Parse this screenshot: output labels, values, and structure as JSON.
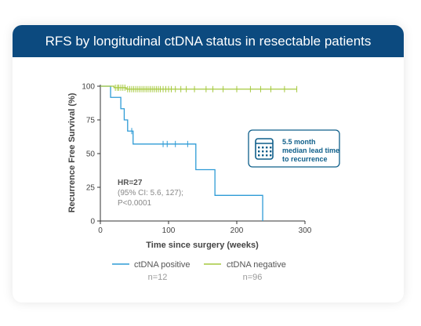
{
  "header": {
    "title": "RFS by longitudinal ctDNA status in resectable patients"
  },
  "callout": {
    "icon": "calendar-icon",
    "lines": [
      "5.5 month",
      "median lead time",
      "to recurrence"
    ]
  },
  "hr_annotation": {
    "line1": "HR=27",
    "line2": "(95% CI: 5.6, 127);",
    "line3": "P<0.0001"
  },
  "colors": {
    "header_bg": "#0c4a7f",
    "positive": "#2e9bd6",
    "negative": "#a6c93e",
    "callout_accent": "#0f5f8a"
  },
  "chart_data": {
    "type": "line",
    "subtype": "kaplan-meier",
    "xlabel": "Time since surgery (weeks)",
    "ylabel": "Recurrence Free Survival (%)",
    "xlim": [
      0,
      300
    ],
    "ylim": [
      0,
      100
    ],
    "xticks": [
      0,
      100,
      200,
      300
    ],
    "yticks": [
      0,
      25,
      50,
      75,
      100
    ],
    "legend": {
      "placement": "bottom",
      "items": [
        {
          "label": "ctDNA positive",
          "n": "n=12",
          "color": "#2e9bd6"
        },
        {
          "label": "ctDNA negative",
          "n": "n=96",
          "color": "#a6c93e"
        }
      ]
    },
    "series": [
      {
        "name": "ctDNA positive",
        "color": "#2e9bd6",
        "steps": [
          [
            0,
            100
          ],
          [
            15,
            100
          ],
          [
            15,
            91.7
          ],
          [
            30,
            91.7
          ],
          [
            30,
            83.3
          ],
          [
            35,
            83.3
          ],
          [
            35,
            75
          ],
          [
            40,
            75
          ],
          [
            40,
            66.7
          ],
          [
            48,
            66.7
          ],
          [
            48,
            57.1
          ],
          [
            140,
            57.1
          ],
          [
            140,
            38.1
          ],
          [
            168,
            38.1
          ],
          [
            168,
            19
          ],
          [
            238,
            19
          ],
          [
            238,
            0
          ]
        ],
        "censor_x": [
          46,
          92,
          98,
          110,
          128
        ],
        "censor_y": [
          66.7,
          57.1,
          57.1,
          57.1,
          57.1
        ]
      },
      {
        "name": "ctDNA negative",
        "color": "#a6c93e",
        "steps": [
          [
            0,
            100
          ],
          [
            20,
            100
          ],
          [
            20,
            98.9
          ],
          [
            38,
            98.9
          ],
          [
            38,
            97.8
          ],
          [
            288,
            97.8
          ]
        ],
        "censor_x": [
          22,
          25,
          27,
          30,
          33,
          36,
          40,
          43,
          46,
          49,
          52,
          55,
          58,
          61,
          64,
          67,
          70,
          73,
          76,
          79,
          82,
          85,
          88,
          92,
          96,
          100,
          104,
          110,
          118,
          126,
          138,
          155,
          165,
          180,
          200,
          220,
          235,
          250,
          270,
          288
        ],
        "censor_y": [
          98.9,
          98.9,
          98.9,
          98.9,
          98.9,
          98.9,
          97.8,
          97.8,
          97.8,
          97.8,
          97.8,
          97.8,
          97.8,
          97.8,
          97.8,
          97.8,
          97.8,
          97.8,
          97.8,
          97.8,
          97.8,
          97.8,
          97.8,
          97.8,
          97.8,
          97.8,
          97.8,
          97.8,
          97.8,
          97.8,
          97.8,
          97.8,
          97.8,
          97.8,
          97.8,
          97.8,
          97.8,
          97.8,
          97.8,
          97.8
        ]
      }
    ]
  }
}
